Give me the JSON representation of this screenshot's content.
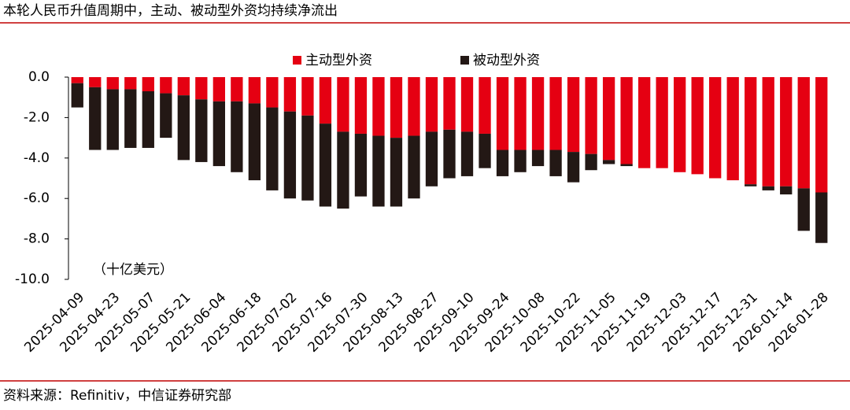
{
  "chart_data": {
    "type": "stacked_bar",
    "title": "本轮人民币升值周期中，主动、被动型外资均持续净流出",
    "unit_label": "（十亿美元）",
    "source": "资料来源：Refinitiv，中信证券研究部",
    "categories": [
      "2025-04-09",
      null,
      "2025-04-23",
      null,
      "2025-05-07",
      null,
      "2025-05-21",
      null,
      "2025-06-04",
      null,
      "2025-06-18",
      null,
      "2025-07-02",
      null,
      "2025-07-16",
      null,
      "2025-07-30",
      null,
      "2025-08-13",
      null,
      "2025-08-27",
      null,
      "2025-09-10",
      null,
      "2025-09-24",
      null,
      "2025-10-08",
      null,
      "2025-10-22",
      null,
      "2025-11-05",
      null,
      "2025-11-19",
      null,
      "2025-12-03",
      null,
      "2025-12-17",
      null,
      "2025-12-31",
      null,
      "2026-01-14",
      null,
      "2026-01-28"
    ],
    "series": [
      {
        "name": "主动型外资",
        "color": "#e50012",
        "values": [
          -0.3,
          -0.5,
          -0.6,
          -0.6,
          -0.7,
          -0.8,
          -0.9,
          -1.1,
          -1.2,
          -1.2,
          -1.3,
          -1.5,
          -1.7,
          -1.9,
          -2.3,
          -2.7,
          -2.8,
          -2.9,
          -3.0,
          -2.9,
          -2.7,
          -2.6,
          -2.7,
          -2.8,
          -3.6,
          -3.6,
          -3.6,
          -3.6,
          -3.7,
          -3.8,
          -4.1,
          -4.3,
          -4.5,
          -4.5,
          -4.7,
          -4.8,
          -5.0,
          -5.1,
          -5.3,
          -5.4,
          -5.4,
          -5.5,
          -5.7
        ]
      },
      {
        "name": "被动型外资",
        "color": "#231815",
        "values": [
          -1.2,
          -3.1,
          -3.0,
          -2.9,
          -2.8,
          -2.2,
          -3.2,
          -3.1,
          -3.2,
          -3.5,
          -3.8,
          -4.1,
          -4.3,
          -4.2,
          -4.1,
          -3.8,
          -3.1,
          -3.5,
          -3.4,
          -3.1,
          -2.7,
          -2.4,
          -2.2,
          -1.7,
          -1.3,
          -1.1,
          -0.8,
          -1.3,
          -1.5,
          -0.8,
          -0.2,
          -0.1,
          0,
          0,
          0,
          0,
          0,
          0,
          -0.1,
          -0.2,
          -0.4,
          -2.1,
          -2.5
        ]
      }
    ],
    "ylim": [
      -10,
      0
    ],
    "yticks": [
      {
        "value": 0,
        "label": "0.0"
      },
      {
        "value": -2,
        "label": "-2.0"
      },
      {
        "value": -4,
        "label": "-4.0"
      },
      {
        "value": -6,
        "label": "-6.0"
      },
      {
        "value": -8,
        "label": "-8.0"
      },
      {
        "value": -10,
        "label": "-10.0"
      }
    ]
  }
}
